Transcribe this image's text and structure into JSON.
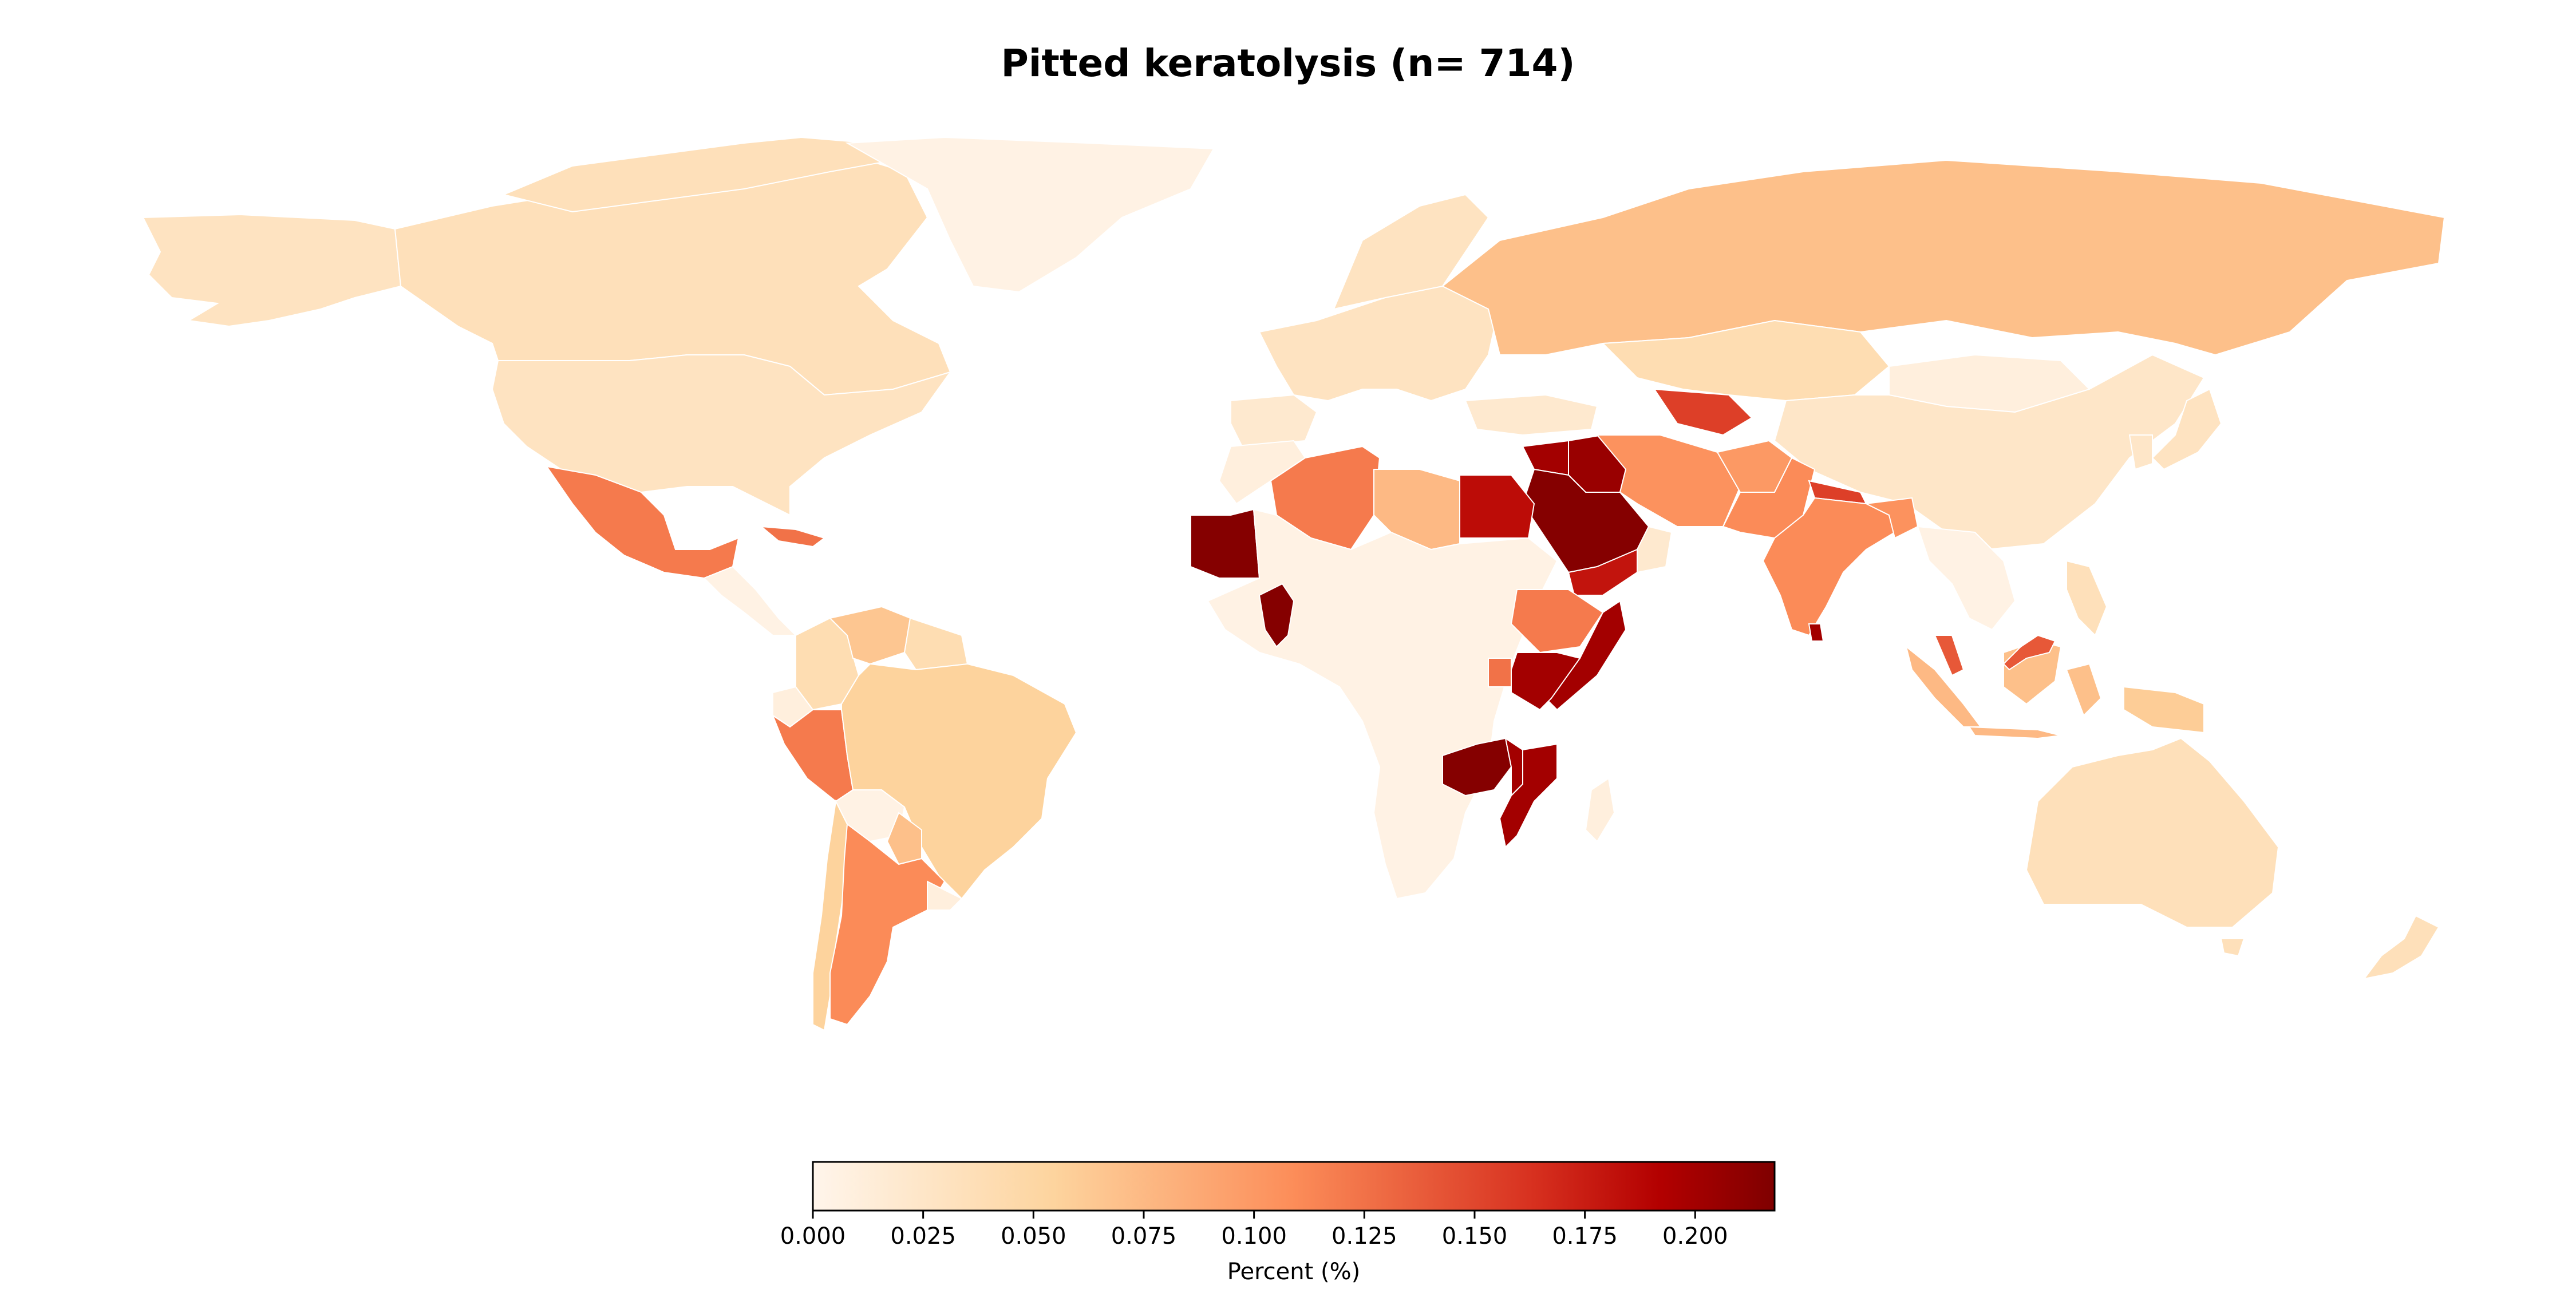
{
  "title": "Pitted keratolysis (n= 714)",
  "colorbar": {
    "label": "Percent (%)",
    "min": 0.0,
    "max": 0.218,
    "ticks": [
      {
        "value": 0.0,
        "label": "0.000"
      },
      {
        "value": 0.025,
        "label": "0.025"
      },
      {
        "value": 0.05,
        "label": "0.050"
      },
      {
        "value": 0.075,
        "label": "0.075"
      },
      {
        "value": 0.1,
        "label": "0.100"
      },
      {
        "value": 0.125,
        "label": "0.125"
      },
      {
        "value": 0.15,
        "label": "0.150"
      },
      {
        "value": 0.175,
        "label": "0.175"
      },
      {
        "value": 0.2,
        "label": "0.200"
      }
    ],
    "colormap": "OrRd-like sequential (cream to dark red)"
  },
  "chart_data": {
    "type": "heatmap",
    "title": "Pitted keratolysis (n= 714)",
    "legend_label": "Percent (%)",
    "value_range": [
      0.0,
      0.218
    ],
    "regions": [
      {
        "name": "Canada",
        "value": 0.035
      },
      {
        "name": "United States",
        "value": 0.03
      },
      {
        "name": "Alaska",
        "value": 0.03
      },
      {
        "name": "Greenland",
        "value": 0.005
      },
      {
        "name": "Mexico",
        "value": 0.12
      },
      {
        "name": "Cuba",
        "value": 0.125
      },
      {
        "name": "Central America",
        "value": 0.005
      },
      {
        "name": "Colombia",
        "value": 0.04
      },
      {
        "name": "Venezuela",
        "value": 0.065
      },
      {
        "name": "Guyana region",
        "value": 0.04
      },
      {
        "name": "Ecuador",
        "value": 0.01
      },
      {
        "name": "Peru",
        "value": 0.12
      },
      {
        "name": "Brazil",
        "value": 0.055
      },
      {
        "name": "Bolivia",
        "value": 0.005
      },
      {
        "name": "Paraguay",
        "value": 0.07
      },
      {
        "name": "Chile",
        "value": 0.055
      },
      {
        "name": "Argentina",
        "value": 0.11
      },
      {
        "name": "Uruguay",
        "value": 0.01
      },
      {
        "name": "Western Europe",
        "value": 0.03
      },
      {
        "name": "Iberia",
        "value": 0.02
      },
      {
        "name": "Russia",
        "value": 0.07
      },
      {
        "name": "Kazakhstan",
        "value": 0.04
      },
      {
        "name": "Mongolia",
        "value": 0.01
      },
      {
        "name": "China",
        "value": 0.025
      },
      {
        "name": "Japan",
        "value": 0.03
      },
      {
        "name": "Uzbekistan",
        "value": 0.155
      },
      {
        "name": "Turkey",
        "value": 0.02
      },
      {
        "name": "Iran",
        "value": 0.105
      },
      {
        "name": "Afghanistan",
        "value": 0.1
      },
      {
        "name": "Pakistan",
        "value": 0.11
      },
      {
        "name": "Nepal",
        "value": 0.155
      },
      {
        "name": "India",
        "value": 0.11
      },
      {
        "name": "Bangladesh",
        "value": 0.105
      },
      {
        "name": "Sri Lanka",
        "value": 0.2
      },
      {
        "name": "Southeast Asia mainland",
        "value": 0.005
      },
      {
        "name": "Malaysia",
        "value": 0.14
      },
      {
        "name": "Sumatra",
        "value": 0.075
      },
      {
        "name": "Borneo",
        "value": 0.07
      },
      {
        "name": "Philippines",
        "value": 0.035
      },
      {
        "name": "Papua New Guinea",
        "value": 0.06
      },
      {
        "name": "Australia",
        "value": 0.035
      },
      {
        "name": "New Zealand",
        "value": 0.035
      },
      {
        "name": "Morocco",
        "value": 0.01
      },
      {
        "name": "Algeria",
        "value": 0.12
      },
      {
        "name": "Libya",
        "value": 0.075
      },
      {
        "name": "Egypt",
        "value": 0.185
      },
      {
        "name": "Mauritania",
        "value": 0.215
      },
      {
        "name": "Ghana",
        "value": 0.215
      },
      {
        "name": "Sub-Saharan Africa",
        "value": 0.005
      },
      {
        "name": "Ethiopia",
        "value": 0.12
      },
      {
        "name": "Kenya",
        "value": 0.2
      },
      {
        "name": "Somalia",
        "value": 0.2
      },
      {
        "name": "Uganda",
        "value": 0.125
      },
      {
        "name": "Zambia",
        "value": 0.215
      },
      {
        "name": "Malawi",
        "value": 0.2
      },
      {
        "name": "Mozambique",
        "value": 0.2
      },
      {
        "name": "Madagascar",
        "value": 0.01
      },
      {
        "name": "Saudi Arabia",
        "value": 0.215
      },
      {
        "name": "Yemen",
        "value": 0.18
      },
      {
        "name": "Iraq",
        "value": 0.205
      },
      {
        "name": "Syria",
        "value": 0.2
      },
      {
        "name": "Oman",
        "value": 0.02
      }
    ]
  }
}
